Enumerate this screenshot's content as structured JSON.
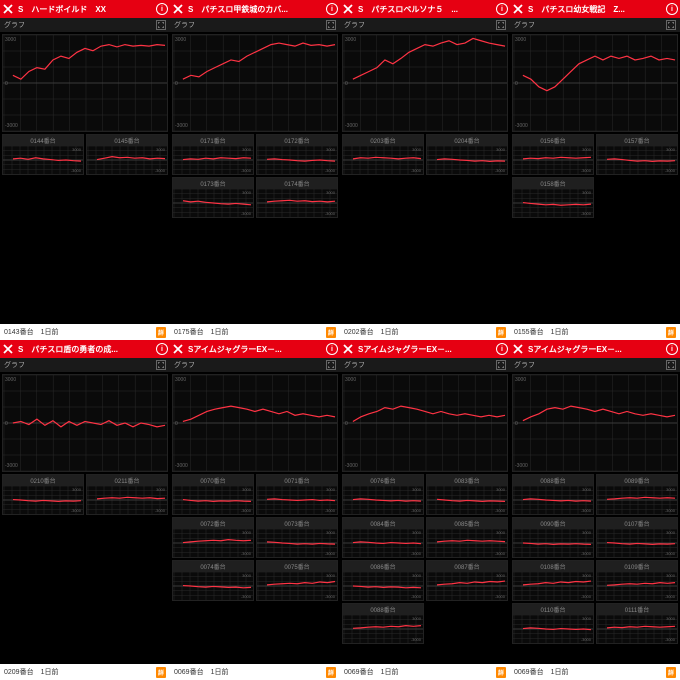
{
  "colors": {
    "header_bg": "#e60012",
    "line": "#ff3344",
    "grid": "#2a2a2a",
    "panel_bg": "#0a0a0a"
  },
  "common": {
    "graph_label": "グラフ",
    "y_max": "3000",
    "y_zero": "0",
    "y_min": "-3000",
    "thumb_y_max": "3000",
    "thumb_y_min": "-3000",
    "footer_suffix": "1日前",
    "badge": "詳"
  },
  "panels": [
    {
      "title": "S　ハードボイルド　XX",
      "footer_id": "0143番台",
      "main_data": [
        0.1,
        0.05,
        0.15,
        0.2,
        0.18,
        0.3,
        0.35,
        0.32,
        0.4,
        0.45,
        0.42,
        0.48,
        0.5,
        0.47,
        0.5,
        0.48,
        0.49,
        0.48,
        0.5,
        0.49
      ],
      "thumbs": [
        {
          "label": "0144番台",
          "data": [
            0.05,
            0.08,
            0.03,
            0.1,
            0.05,
            0.02,
            -0.02,
            0.0,
            -0.03,
            -0.05
          ]
        },
        {
          "label": "0145番台",
          "data": [
            0.02,
            0.08,
            0.15,
            0.1,
            0.12,
            0.08,
            0.1,
            0.05,
            0.08,
            0.06
          ]
        }
      ]
    },
    {
      "title": "S　パチスロ甲鉄城のカバ...",
      "footer_id": "0175番台",
      "main_data": [
        0.05,
        0.1,
        0.08,
        0.15,
        0.2,
        0.25,
        0.3,
        0.28,
        0.35,
        0.4,
        0.45,
        0.5,
        0.52,
        0.5,
        0.48,
        0.52,
        0.49,
        0.5,
        0.48,
        0.5
      ],
      "thumbs": [
        {
          "label": "0171番台",
          "data": [
            0.02,
            0.05,
            0.03,
            0.08,
            0.05,
            0.1,
            0.08,
            0.06,
            0.1,
            0.08
          ]
        },
        {
          "label": "0172番台",
          "data": [
            0.03,
            0.05,
            0.02,
            0.0,
            -0.03,
            -0.05,
            -0.02,
            0.0,
            -0.03,
            -0.05
          ]
        },
        {
          "label": "0173番台",
          "data": [
            0.1,
            0.05,
            0.08,
            0.03,
            0.0,
            -0.03,
            -0.05,
            -0.02,
            -0.05,
            -0.08
          ]
        },
        {
          "label": "0174番台",
          "data": [
            0.05,
            0.08,
            0.1,
            0.12,
            0.08,
            0.1,
            0.06,
            0.08,
            0.05,
            0.08
          ]
        }
      ]
    },
    {
      "title": "S　パチスロペルソナ５　...",
      "footer_id": "0202番台",
      "main_data": [
        0.05,
        0.1,
        0.15,
        0.2,
        0.3,
        0.25,
        0.32,
        0.4,
        0.45,
        0.5,
        0.48,
        0.52,
        0.55,
        0.5,
        0.52,
        0.58,
        0.55,
        0.52,
        0.5,
        0.48
      ],
      "thumbs": [
        {
          "label": "0203番台",
          "data": [
            0.05,
            0.1,
            0.08,
            0.12,
            0.1,
            0.08,
            0.05,
            0.08,
            0.1,
            0.06
          ]
        },
        {
          "label": "0204番台",
          "data": [
            0.02,
            0.05,
            0.03,
            0.0,
            -0.02,
            -0.05,
            -0.03,
            -0.06,
            -0.04,
            -0.05
          ]
        }
      ]
    },
    {
      "title": "S　パチスロ幼女戦記　Z...",
      "footer_id": "0155番台",
      "main_data": [
        0.1,
        0.05,
        -0.05,
        -0.1,
        -0.05,
        0.05,
        0.15,
        0.25,
        0.3,
        0.35,
        0.3,
        0.35,
        0.32,
        0.35,
        0.3,
        0.32,
        0.35,
        0.3,
        0.32,
        0.3
      ],
      "thumbs": [
        {
          "label": "0156番台",
          "data": [
            0.05,
            0.08,
            0.06,
            0.1,
            0.08,
            0.12,
            0.1,
            0.08,
            0.1,
            0.12
          ]
        },
        {
          "label": "0157番台",
          "data": [
            0.03,
            0.05,
            0.02,
            -0.02,
            -0.05,
            -0.03,
            -0.06,
            -0.04,
            -0.05,
            -0.03
          ]
        },
        {
          "label": "0158番台",
          "data": [
            0.02,
            -0.02,
            -0.05,
            -0.08,
            -0.06,
            -0.1,
            -0.08,
            -0.06,
            -0.08,
            -0.05
          ]
        }
      ]
    },
    {
      "title": "S　パチスロ盾の勇者の成...",
      "footer_id": "0209番台",
      "main_data": [
        0.0,
        0.02,
        -0.02,
        0.05,
        -0.03,
        0.03,
        -0.05,
        0.02,
        -0.03,
        0.02,
        0.0,
        -0.02,
        0.03,
        -0.03,
        0.0,
        -0.05,
        0.0,
        -0.02,
        -0.05,
        -0.03
      ],
      "thumbs": [
        {
          "label": "0210番台",
          "data": [
            0.02,
            0.0,
            -0.03,
            -0.05,
            -0.02,
            -0.04,
            -0.06,
            -0.04,
            -0.05,
            -0.03
          ]
        },
        {
          "label": "0211番台",
          "data": [
            0.05,
            0.08,
            0.1,
            0.08,
            0.12,
            0.1,
            0.08,
            0.1,
            0.06,
            0.08
          ]
        }
      ]
    },
    {
      "title": "SアイムジャグラーEX－...",
      "footer_id": "0069番台",
      "main_data": [
        0.02,
        0.05,
        0.1,
        0.15,
        0.18,
        0.2,
        0.22,
        0.2,
        0.18,
        0.15,
        0.18,
        0.15,
        0.12,
        0.15,
        0.1,
        0.12,
        0.1,
        0.08,
        0.1,
        0.08
      ],
      "thumbs": [
        {
          "label": "0070番台",
          "data": [
            0.02,
            -0.02,
            -0.05,
            -0.03,
            -0.06,
            -0.04,
            -0.05,
            -0.03,
            -0.05,
            -0.06
          ]
        },
        {
          "label": "0071番台",
          "data": [
            0.03,
            0.05,
            0.02,
            0.0,
            -0.02,
            0.0,
            0.02,
            -0.02,
            0.0,
            -0.03
          ]
        },
        {
          "label": "0072番台",
          "data": [
            0.02,
            0.05,
            0.08,
            0.1,
            0.12,
            0.1,
            0.15,
            0.12,
            0.1,
            0.12
          ]
        },
        {
          "label": "0073番台",
          "data": [
            0.05,
            0.03,
            0.0,
            -0.02,
            -0.05,
            -0.03,
            -0.05,
            -0.02,
            -0.04,
            -0.05
          ]
        },
        {
          "label": "0074番台",
          "data": [
            0.02,
            0.0,
            -0.03,
            -0.05,
            -0.02,
            -0.04,
            -0.06,
            -0.05,
            -0.08,
            -0.06
          ]
        },
        {
          "label": "0075番台",
          "data": [
            0.05,
            0.08,
            0.1,
            0.12,
            0.1,
            0.15,
            0.12,
            0.18,
            0.15,
            0.2
          ]
        }
      ]
    },
    {
      "title": "SアイムジャグラーEX－...",
      "footer_id": "0069番台",
      "main_data": [
        0.02,
        0.08,
        0.12,
        0.15,
        0.2,
        0.18,
        0.22,
        0.2,
        0.18,
        0.15,
        0.12,
        0.15,
        0.12,
        0.1,
        0.12,
        0.1,
        0.08,
        0.1,
        0.08,
        0.1
      ],
      "thumbs": [
        {
          "label": "0076番台",
          "data": [
            0.02,
            0.05,
            0.03,
            0.0,
            -0.02,
            -0.04,
            -0.02,
            -0.05,
            -0.03,
            -0.05
          ]
        },
        {
          "label": "0083番台",
          "data": [
            0.03,
            0.0,
            -0.03,
            -0.05,
            -0.02,
            -0.04,
            -0.06,
            -0.04,
            -0.05,
            -0.06
          ]
        },
        {
          "label": "0084番台",
          "data": [
            0.02,
            0.05,
            0.03,
            0.0,
            -0.02,
            0.02,
            0.0,
            -0.02,
            0.0,
            -0.03
          ]
        },
        {
          "label": "0085番台",
          "data": [
            0.05,
            0.08,
            0.1,
            0.08,
            0.12,
            0.1,
            0.08,
            0.1,
            0.08,
            0.06
          ]
        },
        {
          "label": "0086番台",
          "data": [
            0.0,
            -0.02,
            -0.05,
            -0.03,
            -0.06,
            -0.04,
            -0.05,
            -0.08,
            -0.06,
            -0.08
          ]
        },
        {
          "label": "0087番台",
          "data": [
            0.05,
            0.08,
            0.1,
            0.15,
            0.12,
            0.18,
            0.15,
            0.2,
            0.18,
            0.22
          ]
        },
        {
          "label": "0088番台",
          "data": [
            0.03,
            0.05,
            0.08,
            0.1,
            0.08,
            0.12,
            0.1,
            0.15,
            0.12,
            0.15
          ]
        }
      ]
    },
    {
      "title": "SアイムジャグラーEX－...",
      "footer_id": "0069番台",
      "main_data": [
        0.03,
        0.08,
        0.12,
        0.18,
        0.2,
        0.18,
        0.22,
        0.2,
        0.18,
        0.15,
        0.18,
        0.15,
        0.12,
        0.15,
        0.12,
        0.1,
        0.12,
        0.1,
        0.08,
        0.1
      ],
      "thumbs": [
        {
          "label": "0088番台",
          "data": [
            0.02,
            0.05,
            0.03,
            0.0,
            -0.02,
            -0.04,
            -0.02,
            -0.05,
            -0.03,
            -0.05
          ]
        },
        {
          "label": "0089番台",
          "data": [
            0.03,
            0.05,
            0.08,
            0.1,
            0.08,
            0.12,
            0.1,
            0.08,
            0.1,
            0.08
          ]
        },
        {
          "label": "0090番台",
          "data": [
            0.0,
            -0.02,
            -0.05,
            -0.03,
            -0.06,
            -0.04,
            -0.05,
            -0.03,
            -0.05,
            -0.06
          ]
        },
        {
          "label": "0107番台",
          "data": [
            0.02,
            0.0,
            -0.03,
            -0.05,
            -0.02,
            -0.04,
            -0.06,
            -0.04,
            -0.05,
            -0.03
          ]
        },
        {
          "label": "0108番台",
          "data": [
            0.05,
            0.08,
            0.1,
            0.15,
            0.12,
            0.18,
            0.15,
            0.2,
            0.18,
            0.22
          ]
        },
        {
          "label": "0109番台",
          "data": [
            0.03,
            0.05,
            0.08,
            0.1,
            0.08,
            0.12,
            0.1,
            0.15,
            0.12,
            0.15
          ]
        },
        {
          "label": "0110番台",
          "data": [
            0.02,
            0.05,
            0.03,
            0.0,
            -0.02,
            0.02,
            0.0,
            -0.02,
            0.0,
            -0.03
          ]
        },
        {
          "label": "0111番台",
          "data": [
            0.05,
            0.08,
            0.06,
            0.1,
            0.08,
            0.12,
            0.1,
            0.08,
            0.1,
            0.12
          ]
        }
      ]
    }
  ]
}
